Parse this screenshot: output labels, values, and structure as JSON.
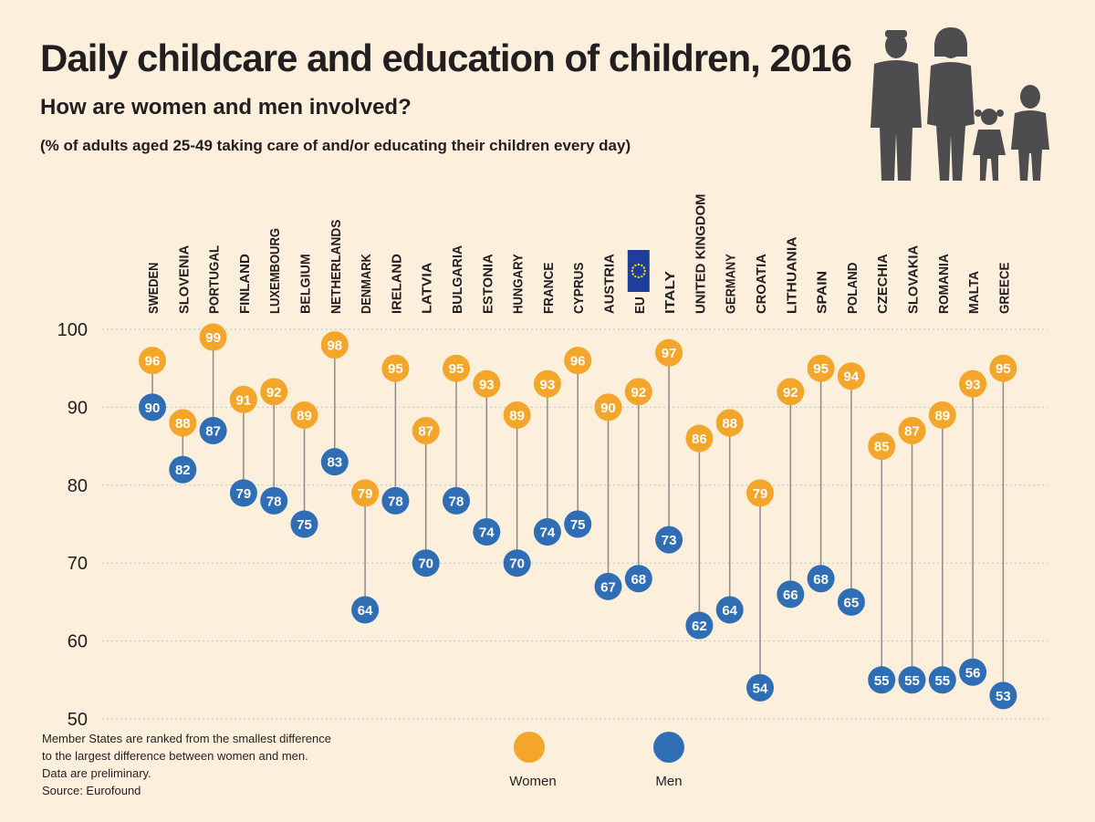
{
  "title": "Daily childcare and education of children, 2016",
  "subtitle": "How are women and men involved?",
  "subnote": "(% of adults aged 25-49 taking care of and/or educating their children every day)",
  "footnotes": [
    "Member States are ranked from the smallest difference",
    "to the largest difference between women and men.",
    "Data are preliminary.",
    "Source: Eurofound"
  ],
  "colors": {
    "women": "#f4a62a",
    "men": "#2f6db5",
    "connector": "#8c8c8c",
    "grid": "#b9c3d6",
    "background": "#fcefdc",
    "silhouette": "#4d4d4f"
  },
  "icons": {
    "family": "family-silhouette-icon",
    "eu_flag": "eu-flag-icon"
  },
  "chart_data": {
    "type": "dot-range",
    "categories": [
      "SWEDEN",
      "SLOVENIA",
      "PORTUGAL",
      "FINLAND",
      "LUXEMBOURG",
      "BELGIUM",
      "NETHERLANDS",
      "DENMARK",
      "IRELAND",
      "LATVIA",
      "BULGARIA",
      "ESTONIA",
      "HUNGARY",
      "FRANCE",
      "CYPRUS",
      "AUSTRIA",
      "EU",
      "ITALY",
      "UNITED KINGDOM",
      "GERMANY",
      "CROATIA",
      "LITHUANIA",
      "SPAIN",
      "POLAND",
      "CZECHIA",
      "SLOVAKIA",
      "ROMANIA",
      "MALTA",
      "GREECE"
    ],
    "series": [
      {
        "name": "Women",
        "values": [
          96,
          88,
          99,
          91,
          92,
          89,
          98,
          79,
          95,
          87,
          95,
          93,
          89,
          93,
          96,
          90,
          92,
          97,
          86,
          88,
          79,
          92,
          95,
          94,
          85,
          87,
          89,
          93,
          95
        ]
      },
      {
        "name": "Men",
        "values": [
          90,
          82,
          87,
          79,
          78,
          75,
          83,
          64,
          78,
          70,
          78,
          74,
          70,
          74,
          75,
          67,
          68,
          73,
          62,
          64,
          54,
          66,
          68,
          65,
          55,
          55,
          55,
          56,
          53
        ]
      }
    ],
    "yticks": [
      50,
      60,
      70,
      80,
      90,
      100
    ],
    "ylim": [
      50,
      100
    ],
    "grid": true,
    "legend_position": "bottom-center"
  }
}
